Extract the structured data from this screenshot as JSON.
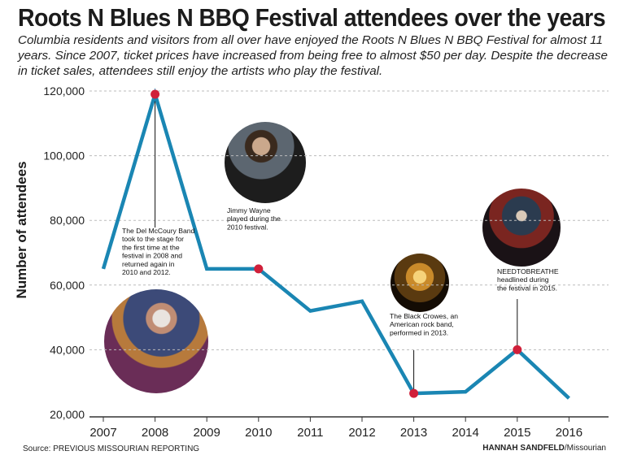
{
  "title": "Roots N Blues N BBQ Festival attendees over the years",
  "subtitle": "Columbia residents and visitors from all over have enjoyed the Roots N Blues N BBQ Festival for almost 11 years. Since 2007, ticket prices have increased from being free to almost $50 per day. Despite the decrease in ticket sales, attendees still enjoy the artists who play the festival.",
  "source": "Source: PREVIOUS MISSOURIAN REPORTING",
  "credit": {
    "name": "HANNAH SANDFELD",
    "outlet": "/Missourian"
  },
  "colors": {
    "line": "#1a86b3",
    "marker": "#d0203a",
    "axis": "#333333",
    "grid": "#bbbbbb"
  },
  "chart_data": {
    "type": "line",
    "title": "Roots N Blues N BBQ Festival attendees over the years",
    "xlabel": "",
    "ylabel": "Number of attendees",
    "categories": [
      "2007",
      "2008",
      "2009",
      "2010",
      "2011",
      "2012",
      "2013",
      "2014",
      "2015",
      "2016"
    ],
    "values": [
      65000,
      119000,
      65000,
      65000,
      52000,
      55000,
      26500,
      27000,
      40000,
      25000
    ],
    "ylim": [
      20000,
      120000
    ],
    "yticks": [
      "20,000",
      "40,000",
      "60,000",
      "80,000",
      "100,000",
      "120,000"
    ],
    "grid": "horizontal dashed",
    "annotations": [
      {
        "year": "2008",
        "lines": [
          "The Del McCoury Band",
          "took to the stage for",
          "the first time at the",
          "festival in 2008 and",
          "returned again in",
          "2010 and 2012."
        ],
        "photo": "band-on-stage"
      },
      {
        "year": "2010",
        "lines": [
          "Jimmy Wayne",
          "played during the",
          "2010 festival."
        ],
        "photo": "singer-with-guitar"
      },
      {
        "year": "2013",
        "lines": [
          "The Black Crowes, an",
          "American rock band,",
          "performed in 2013."
        ],
        "photo": "rock-singer-spotlight"
      },
      {
        "year": "2015",
        "lines": [
          "NEEDTOBREATHE",
          "headlined during",
          "the festival in 2015."
        ],
        "photo": "band-stage-lights"
      }
    ]
  }
}
